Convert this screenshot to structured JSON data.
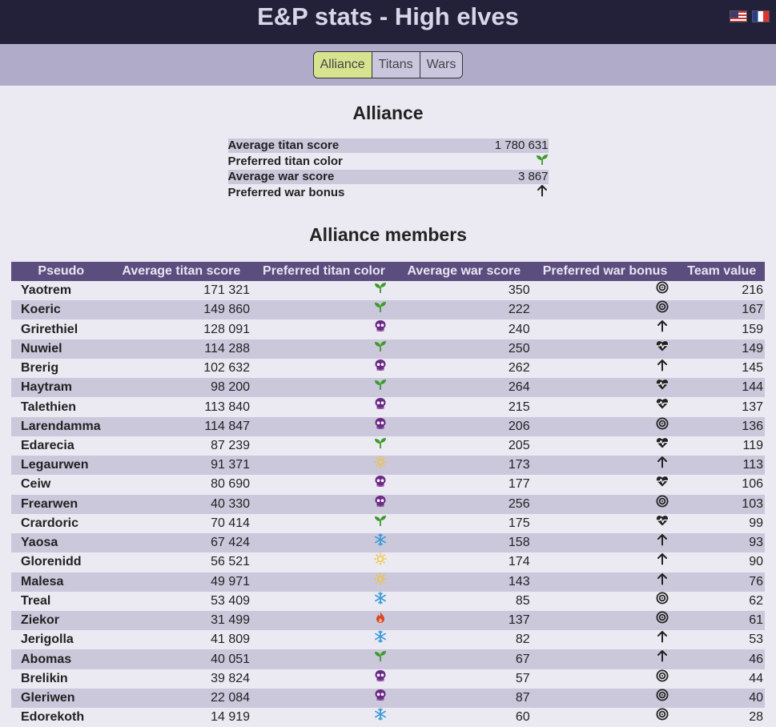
{
  "header": {
    "title": "E&P stats - High elves"
  },
  "nav": {
    "tabs": [
      {
        "label": "Alliance",
        "active": true
      },
      {
        "label": "Titans"
      },
      {
        "label": "Wars"
      }
    ]
  },
  "alliance": {
    "heading": "Alliance",
    "stats": [
      {
        "label": "Average titan score",
        "value": "1 780 631"
      },
      {
        "label": "Preferred titan color",
        "icon": "leaf"
      },
      {
        "label": "Average war score",
        "value": "3 867"
      },
      {
        "label": "Preferred war bonus",
        "icon": "arrow"
      }
    ]
  },
  "members_section": {
    "heading": "Alliance members",
    "columns": [
      "Pseudo",
      "Average titan score",
      "Preferred titan color",
      "Average war score",
      "Preferred war bonus",
      "Team value"
    ],
    "rows": [
      {
        "name": "Yaotrem",
        "titan": "171 321",
        "color": "leaf",
        "war": "350",
        "bonus": "target",
        "team": "216"
      },
      {
        "name": "Koeric",
        "titan": "149 860",
        "color": "leaf",
        "war": "222",
        "bonus": "target",
        "team": "167"
      },
      {
        "name": "Grirethiel",
        "titan": "128 091",
        "color": "skull",
        "war": "240",
        "bonus": "arrow",
        "team": "159"
      },
      {
        "name": "Nuwiel",
        "titan": "114 288",
        "color": "leaf",
        "war": "250",
        "bonus": "heart",
        "team": "149"
      },
      {
        "name": "Brerig",
        "titan": "102 632",
        "color": "skull",
        "war": "262",
        "bonus": "arrow",
        "team": "145"
      },
      {
        "name": "Haytram",
        "titan": "98 200",
        "color": "leaf",
        "war": "264",
        "bonus": "heart",
        "team": "144"
      },
      {
        "name": "Talethien",
        "titan": "113 840",
        "color": "skull",
        "war": "215",
        "bonus": "heart",
        "team": "137"
      },
      {
        "name": "Larendamma",
        "titan": "114 847",
        "color": "skull",
        "war": "206",
        "bonus": "target",
        "team": "136"
      },
      {
        "name": "Edarecia",
        "titan": "87 239",
        "color": "leaf",
        "war": "205",
        "bonus": "heart",
        "team": "119"
      },
      {
        "name": "Legaurwen",
        "titan": "91 371",
        "color": "sun",
        "war": "173",
        "bonus": "arrow",
        "team": "113"
      },
      {
        "name": "Ceiw",
        "titan": "80 690",
        "color": "skull",
        "war": "177",
        "bonus": "heart",
        "team": "106"
      },
      {
        "name": "Frearwen",
        "titan": "40 330",
        "color": "skull",
        "war": "256",
        "bonus": "target",
        "team": "103"
      },
      {
        "name": "Crardoric",
        "titan": "70 414",
        "color": "leaf",
        "war": "175",
        "bonus": "heart",
        "team": "99"
      },
      {
        "name": "Yaosa",
        "titan": "67 424",
        "color": "snow",
        "war": "158",
        "bonus": "arrow",
        "team": "93"
      },
      {
        "name": "Glorenidd",
        "titan": "56 521",
        "color": "sun",
        "war": "174",
        "bonus": "arrow",
        "team": "90"
      },
      {
        "name": "Malesa",
        "titan": "49 971",
        "color": "sun",
        "war": "143",
        "bonus": "arrow",
        "team": "76"
      },
      {
        "name": "Treal",
        "titan": "53 409",
        "color": "snow",
        "war": "85",
        "bonus": "target",
        "team": "62"
      },
      {
        "name": "Ziekor",
        "titan": "31 499",
        "color": "fire",
        "war": "137",
        "bonus": "target",
        "team": "61"
      },
      {
        "name": "Jerigolla",
        "titan": "41 809",
        "color": "snow",
        "war": "82",
        "bonus": "arrow",
        "team": "53"
      },
      {
        "name": "Abomas",
        "titan": "40 051",
        "color": "leaf",
        "war": "67",
        "bonus": "arrow",
        "team": "46"
      },
      {
        "name": "Brelikin",
        "titan": "39 824",
        "color": "skull",
        "war": "57",
        "bonus": "target",
        "team": "44"
      },
      {
        "name": "Gleriwen",
        "titan": "22 084",
        "color": "skull",
        "war": "87",
        "bonus": "target",
        "team": "40"
      },
      {
        "name": "Edorekoth",
        "titan": "14 919",
        "color": "snow",
        "war": "60",
        "bonus": "target",
        "team": "28"
      }
    ]
  },
  "colors": {
    "leaf": "#3d9a2b",
    "skull": "#6c2a86",
    "sun": "#f2c22a",
    "snow": "#3a9bd8",
    "fire": "#d8452a",
    "dark": "#222222"
  }
}
